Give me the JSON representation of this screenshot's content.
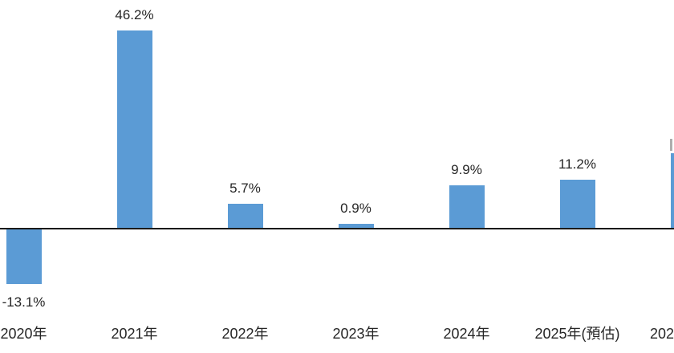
{
  "chart_data": {
    "type": "bar",
    "title": "",
    "xlabel": "",
    "ylabel": "",
    "categories": [
      "2020年",
      "2021年",
      "2022年",
      "2023年",
      "2024年",
      "2025年(預估)",
      "202"
    ],
    "values": [
      -13.1,
      46.2,
      5.7,
      0.9,
      9.9,
      11.2,
      17.5
    ],
    "data_labels": [
      "-13.1%",
      "46.2%",
      "5.7%",
      "0.9%",
      "9.9%",
      "11.2%",
      ""
    ],
    "last_bar_clipped_at_right_edge": true,
    "last_bar_value_estimated_from_pixels": true,
    "last_bar_label_fragment_visible": true,
    "ylim": [
      -20,
      50
    ],
    "grid": false,
    "legend": false,
    "bar_color": "#5b9bd5",
    "axis_color": "#1a1a1a",
    "text_color": "#262626",
    "background_color": "#ffffff"
  }
}
